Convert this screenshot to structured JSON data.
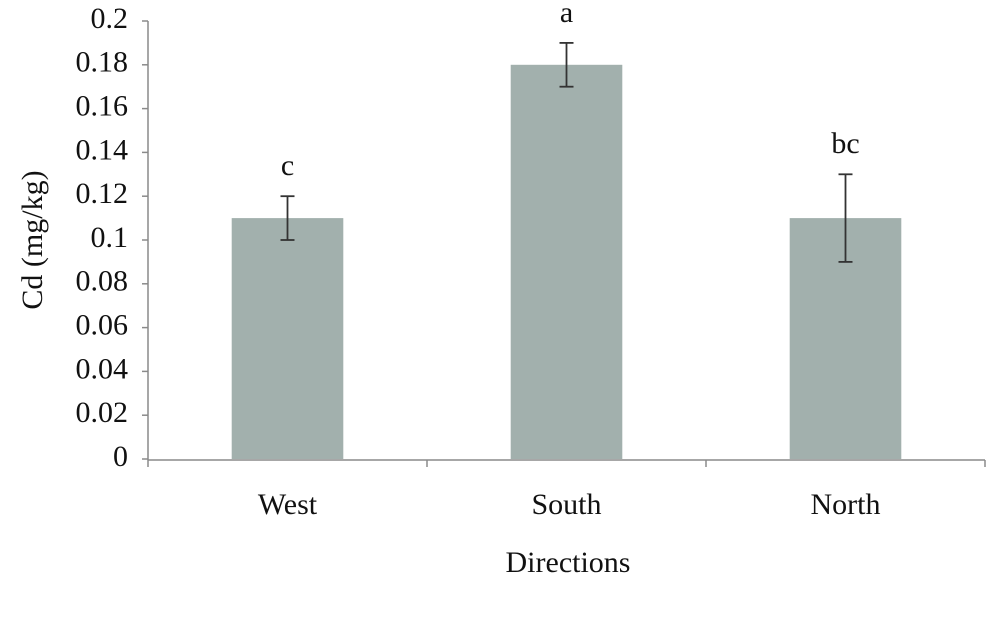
{
  "chart_data": {
    "type": "bar",
    "x_label": "Directions",
    "y_label": "Cd (mg/kg)",
    "categories": [
      "West",
      "South",
      "North"
    ],
    "values": [
      0.11,
      0.18,
      0.11
    ],
    "errors": [
      0.01,
      0.01,
      0.02
    ],
    "group_labels": [
      "c",
      "a",
      "bc"
    ],
    "color": "#a2b0ad",
    "ylim": [
      0,
      0.2
    ],
    "yticks": [
      0,
      0.02,
      0.04,
      0.06,
      0.08,
      0.1,
      0.12,
      0.14,
      0.16,
      0.18,
      0.2
    ],
    "grid": false
  }
}
